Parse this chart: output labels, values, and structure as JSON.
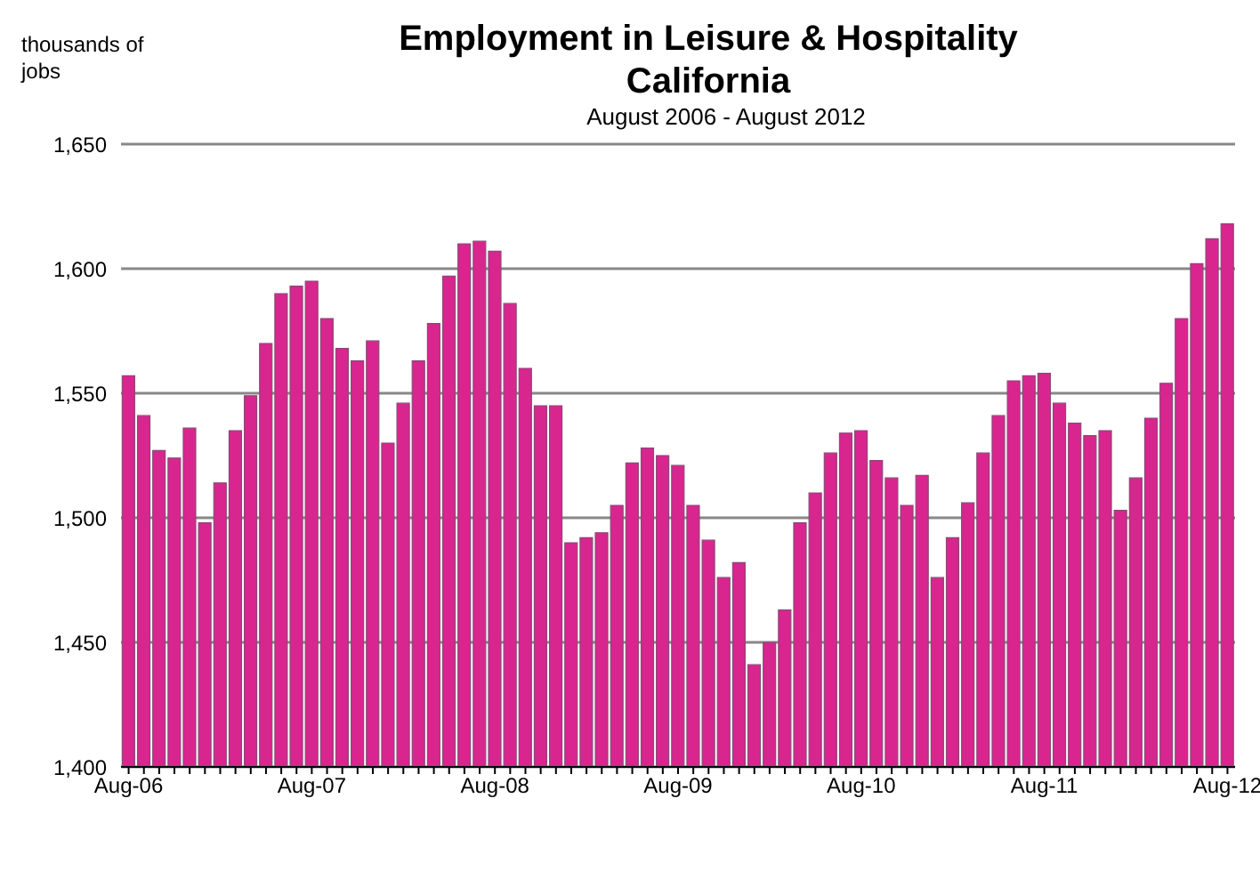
{
  "chart_data": {
    "type": "bar",
    "title": "Employment in Leisure & Hospitality\nCalifornia",
    "subtitle": "August 2006 - August 2012",
    "ylabel": "thousands of jobs",
    "categories": [
      "Aug-06",
      null,
      null,
      null,
      null,
      null,
      null,
      null,
      null,
      null,
      null,
      null,
      "Aug-07",
      null,
      null,
      null,
      null,
      null,
      null,
      null,
      null,
      null,
      null,
      null,
      "Aug-08",
      null,
      null,
      null,
      null,
      null,
      null,
      null,
      null,
      null,
      null,
      null,
      "Aug-09",
      null,
      null,
      null,
      null,
      null,
      null,
      null,
      null,
      null,
      null,
      null,
      "Aug-10",
      null,
      null,
      null,
      null,
      null,
      null,
      null,
      null,
      null,
      null,
      null,
      "Aug-11",
      null,
      null,
      null,
      null,
      null,
      null,
      null,
      null,
      null,
      null,
      null,
      "Aug-12"
    ],
    "values": [
      1557,
      1541,
      1527,
      1524,
      1536,
      1498,
      1514,
      1535,
      1549,
      1570,
      1590,
      1593,
      1595,
      1580,
      1568,
      1563,
      1571,
      1530,
      1546,
      1563,
      1578,
      1597,
      1610,
      1611,
      1607,
      1586,
      1560,
      1545,
      1545,
      1490,
      1492,
      1494,
      1505,
      1522,
      1528,
      1525,
      1521,
      1505,
      1491,
      1476,
      1482,
      1441,
      1450,
      1463,
      1498,
      1510,
      1526,
      1534,
      1535,
      1523,
      1516,
      1505,
      1517,
      1476,
      1492,
      1506,
      1526,
      1541,
      1555,
      1557,
      1558,
      1546,
      1538,
      1533,
      1535,
      1503,
      1516,
      1540,
      1554,
      1580,
      1602,
      1612,
      1618
    ],
    "color": "#d9258e",
    "ylim": [
      1400,
      1650
    ],
    "yticks": [
      {
        "value": 1400,
        "label": "1,400"
      },
      {
        "value": 1450,
        "label": "1,450"
      },
      {
        "value": 1500,
        "label": "1,500"
      },
      {
        "value": 1550,
        "label": "1,550"
      },
      {
        "value": 1600,
        "label": "1,600"
      },
      {
        "value": 1650,
        "label": "1,650"
      }
    ],
    "grid": "y"
  }
}
